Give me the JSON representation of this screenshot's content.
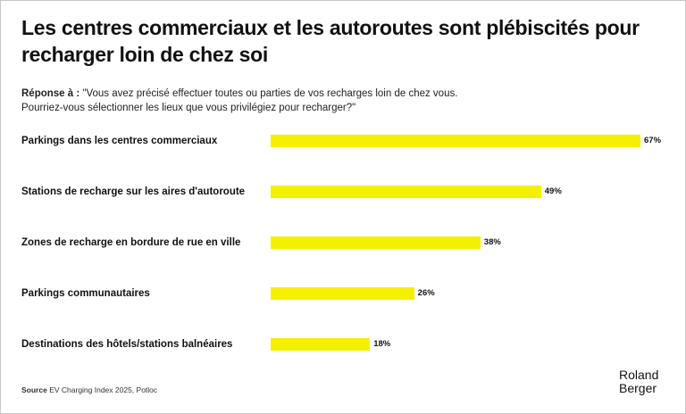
{
  "chart_data": {
    "type": "bar",
    "orientation": "horizontal",
    "title": "Les centres commerciaux et les autoroutes sont plébiscités pour recharger loin de chez soi",
    "subtitle_label": "Réponse à :",
    "subtitle_line1": " \"Vous avez précisé effectuer toutes ou parties de vos recharges loin de chez vous.",
    "subtitle_line2": "Pourriez-vous sélectionner les lieux que vous privilégiez pour recharger?\"",
    "categories": [
      "Parkings dans les centres commerciaux",
      "Stations de recharge sur les aires d'autoroute",
      "Zones de recharge en bordure de rue en ville",
      "Parkings communautaires",
      "Destinations des hôtels/stations balnéaires"
    ],
    "values": [
      67,
      49,
      38,
      26,
      18
    ],
    "value_labels": [
      "67%",
      "49%",
      "38%",
      "26%",
      "18%"
    ],
    "unit": "%",
    "xlim": [
      0,
      67
    ],
    "bar_color": "#f5f000",
    "grid": false
  },
  "footer": {
    "source_label": "Source",
    "source_text": " EV Charging Index 2025, Potloc",
    "logo_line1": "Roland",
    "logo_line2": "Berger"
  }
}
